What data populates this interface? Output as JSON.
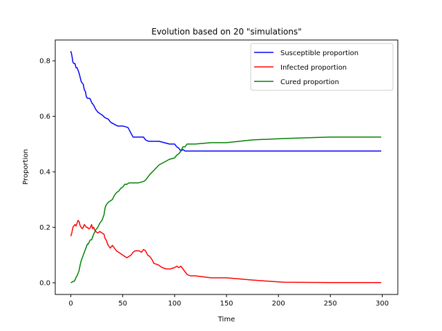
{
  "chart_data": {
    "type": "line",
    "title": "Evolution based on 20 \"simulations\"",
    "xlabel": "Time",
    "ylabel": "Proportion",
    "xlim": [
      -15,
      315
    ],
    "ylim": [
      -0.042,
      0.875
    ],
    "xticks": [
      0,
      50,
      100,
      150,
      200,
      250,
      300
    ],
    "yticks": [
      0.0,
      0.2,
      0.4,
      0.6,
      0.8
    ],
    "ytick_labels": [
      "0.0",
      "0.2",
      "0.4",
      "0.6",
      "0.8"
    ],
    "grid": false,
    "legend": "top-right",
    "series": [
      {
        "name": "Susceptible proportion",
        "color": "#0000ff",
        "x": [
          0,
          1,
          2,
          3,
          4,
          5,
          6,
          7,
          8,
          9,
          10,
          11,
          12,
          13,
          14,
          15,
          16,
          17,
          18,
          19,
          20,
          22,
          24,
          26,
          28,
          30,
          33,
          36,
          38,
          40,
          45,
          50,
          55,
          60,
          65,
          70,
          72,
          75,
          80,
          85,
          90,
          95,
          100,
          102,
          104,
          106,
          108,
          110,
          115,
          120,
          150,
          200,
          250,
          299
        ],
        "y": [
          0.835,
          0.82,
          0.795,
          0.79,
          0.79,
          0.775,
          0.775,
          0.765,
          0.755,
          0.74,
          0.725,
          0.72,
          0.715,
          0.695,
          0.69,
          0.67,
          0.665,
          0.665,
          0.665,
          0.66,
          0.65,
          0.64,
          0.625,
          0.615,
          0.61,
          0.605,
          0.595,
          0.59,
          0.58,
          0.575,
          0.565,
          0.565,
          0.56,
          0.525,
          0.525,
          0.525,
          0.515,
          0.51,
          0.51,
          0.51,
          0.505,
          0.5,
          0.5,
          0.49,
          0.485,
          0.475,
          0.48,
          0.475,
          0.475,
          0.475,
          0.475,
          0.475,
          0.475,
          0.475
        ]
      },
      {
        "name": "Infected proportion",
        "color": "#ff0000",
        "x": [
          0,
          1,
          2,
          3,
          4,
          5,
          6,
          7,
          8,
          9,
          10,
          11,
          12,
          13,
          14,
          15,
          16,
          17,
          18,
          19,
          20,
          21,
          22,
          23,
          24,
          26,
          28,
          30,
          32,
          33,
          34,
          36,
          38,
          40,
          42,
          44,
          46,
          48,
          50,
          52,
          54,
          56,
          58,
          60,
          62,
          64,
          66,
          68,
          70,
          72,
          74,
          76,
          78,
          80,
          84,
          88,
          92,
          96,
          100,
          102,
          104,
          106,
          108,
          110,
          112,
          115,
          120,
          135,
          150,
          175,
          205,
          250,
          299
        ],
        "y": [
          0.168,
          0.18,
          0.2,
          0.205,
          0.21,
          0.205,
          0.215,
          0.225,
          0.22,
          0.205,
          0.2,
          0.195,
          0.2,
          0.21,
          0.205,
          0.2,
          0.2,
          0.195,
          0.195,
          0.2,
          0.21,
          0.195,
          0.2,
          0.19,
          0.185,
          0.18,
          0.185,
          0.18,
          0.175,
          0.16,
          0.155,
          0.135,
          0.125,
          0.135,
          0.125,
          0.115,
          0.11,
          0.105,
          0.1,
          0.095,
          0.09,
          0.095,
          0.1,
          0.11,
          0.115,
          0.115,
          0.115,
          0.11,
          0.12,
          0.115,
          0.1,
          0.095,
          0.085,
          0.07,
          0.065,
          0.055,
          0.05,
          0.05,
          0.055,
          0.06,
          0.055,
          0.06,
          0.05,
          0.04,
          0.03,
          0.025,
          0.025,
          0.018,
          0.018,
          0.01,
          0.002,
          0.001,
          0.001
        ]
      },
      {
        "name": "Cured proportion",
        "color": "#008000",
        "x": [
          0,
          1,
          2,
          3,
          4,
          5,
          6,
          7,
          8,
          9,
          10,
          11,
          12,
          13,
          14,
          15,
          16,
          17,
          18,
          19,
          20,
          22,
          24,
          26,
          28,
          30,
          32,
          33,
          34,
          36,
          38,
          40,
          42,
          44,
          46,
          48,
          50,
          52,
          54,
          56,
          60,
          65,
          70,
          72,
          74,
          76,
          80,
          85,
          90,
          95,
          100,
          102,
          104,
          106,
          108,
          110,
          112,
          115,
          120,
          135,
          150,
          175,
          205,
          250,
          299
        ],
        "y": [
          0.0,
          0.002,
          0.005,
          0.005,
          0.01,
          0.02,
          0.025,
          0.035,
          0.045,
          0.065,
          0.08,
          0.09,
          0.1,
          0.11,
          0.12,
          0.13,
          0.14,
          0.14,
          0.15,
          0.155,
          0.155,
          0.175,
          0.19,
          0.2,
          0.215,
          0.225,
          0.245,
          0.27,
          0.28,
          0.29,
          0.295,
          0.3,
          0.315,
          0.325,
          0.33,
          0.34,
          0.345,
          0.355,
          0.355,
          0.36,
          0.36,
          0.36,
          0.365,
          0.37,
          0.38,
          0.39,
          0.405,
          0.425,
          0.435,
          0.445,
          0.45,
          0.46,
          0.465,
          0.475,
          0.49,
          0.49,
          0.5,
          0.5,
          0.5,
          0.505,
          0.505,
          0.515,
          0.52,
          0.525,
          0.525
        ]
      }
    ]
  }
}
